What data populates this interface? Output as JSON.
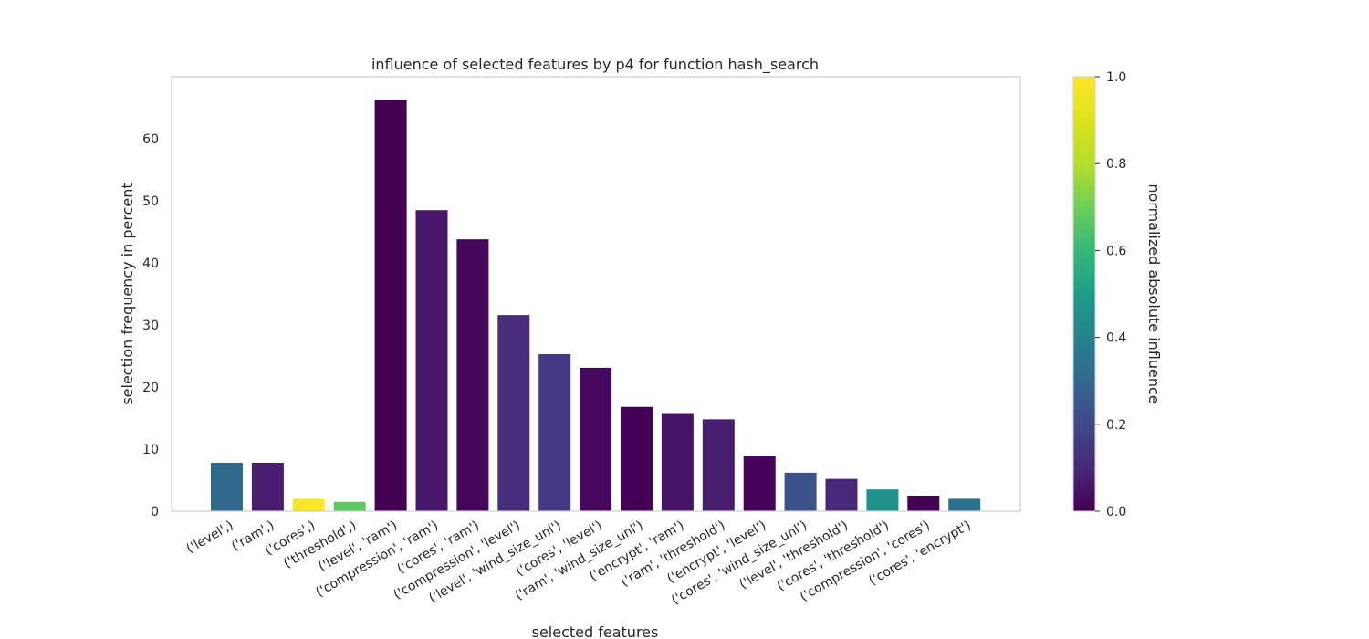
{
  "chart_data": {
    "type": "bar",
    "title": "influence of selected features by p4 for function hash_search",
    "xlabel": "selected features",
    "ylabel": "selection frequency in percent",
    "ylim": [
      0,
      70
    ],
    "yticks": [
      0,
      10,
      20,
      30,
      40,
      50,
      60
    ],
    "grid": false,
    "categories": [
      "('level',)",
      "('ram',)",
      "('cores',)",
      "('threshold',)",
      "('level', 'ram')",
      "('compression', 'ram')",
      "('cores', 'ram')",
      "('compression', 'level')",
      "('level', 'wind_size_unl')",
      "('cores', 'level')",
      "('ram', 'wind_size_unl')",
      "('encrypt', 'ram')",
      "('ram', 'threshold')",
      "('encrypt', 'level')",
      "('cores', 'wind_size_unl')",
      "('level', 'threshold')",
      "('cores', 'threshold')",
      "('compression', 'cores')",
      "('cores', 'encrypt')"
    ],
    "values": [
      7.8,
      7.8,
      2.0,
      1.5,
      66.3,
      48.5,
      43.8,
      31.6,
      25.3,
      23.1,
      16.8,
      15.8,
      14.8,
      8.9,
      6.2,
      5.2,
      3.5,
      2.5,
      2.0
    ],
    "colors": [
      "#31688e",
      "#481c6e",
      "#fde725",
      "#5ec962",
      "#440154",
      "#48186a",
      "#450559",
      "#472d7b",
      "#443a83",
      "#46085c",
      "#440256",
      "#481467",
      "#481f70",
      "#450457",
      "#3b528b",
      "#482878",
      "#21918c",
      "#440154",
      "#2c728e"
    ],
    "colorbar": {
      "label": "normalized absolute influence",
      "colormap": "viridis",
      "range": [
        0.0,
        1.0
      ],
      "ticks": [
        "0.0",
        "0.2",
        "0.4",
        "0.6",
        "0.8",
        "1.0"
      ]
    }
  }
}
